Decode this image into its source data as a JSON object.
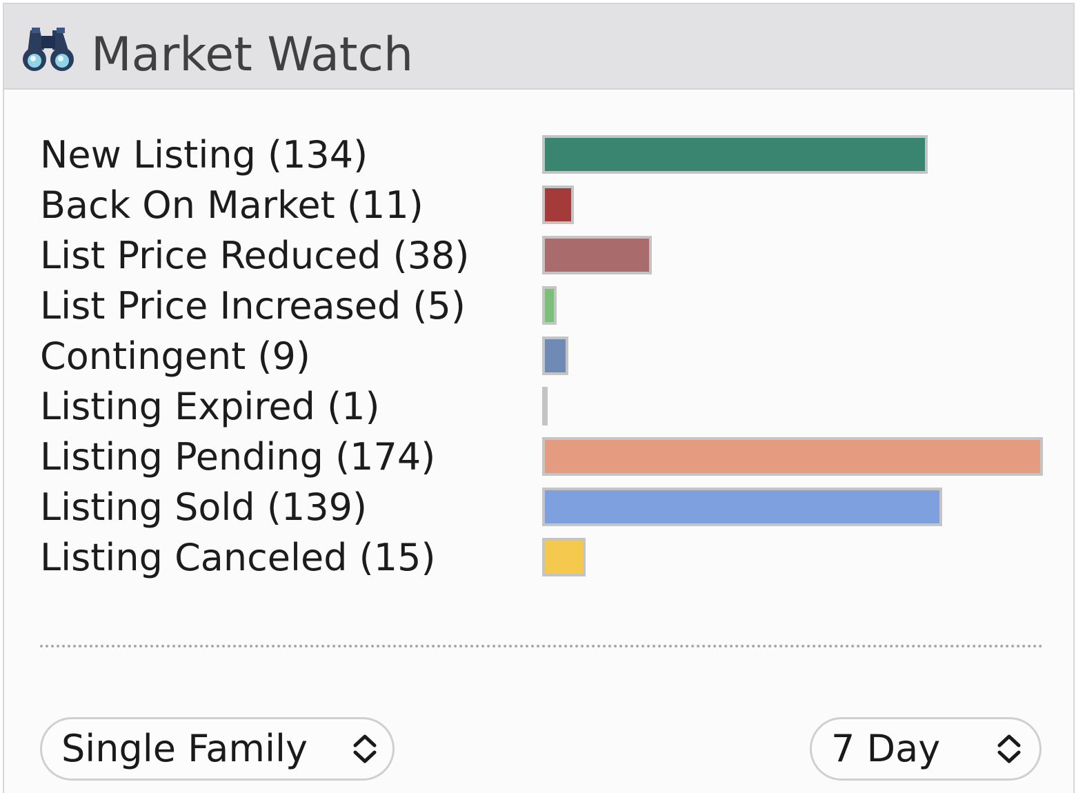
{
  "header": {
    "title": "Market Watch",
    "icon": "binoculars-icon"
  },
  "chart_data": {
    "type": "bar",
    "orientation": "horizontal",
    "categories": [
      "New Listing",
      "Back On Market",
      "List Price Reduced",
      "List Price Increased",
      "Contingent",
      "Listing Expired",
      "Listing Pending",
      "Listing Sold",
      "Listing Canceled"
    ],
    "values": [
      134,
      11,
      38,
      5,
      9,
      1,
      174,
      139,
      15
    ],
    "labels": [
      "New Listing (134)",
      "Back On Market (11)",
      "List Price Reduced (38)",
      "List Price Increased (5)",
      "Contingent (9)",
      "Listing Expired (1)",
      "Listing Pending (174)",
      "Listing Sold (139)",
      "Listing Canceled (15)"
    ],
    "colors": [
      "#3a8570",
      "#a43a3a",
      "#a96b6b",
      "#7cbf7c",
      "#6f8ab5",
      "#c8c8c8",
      "#e49b80",
      "#7ea0de",
      "#f5c84e"
    ]
  },
  "filters": {
    "property_type": "Single Family",
    "period": "7 Day"
  }
}
